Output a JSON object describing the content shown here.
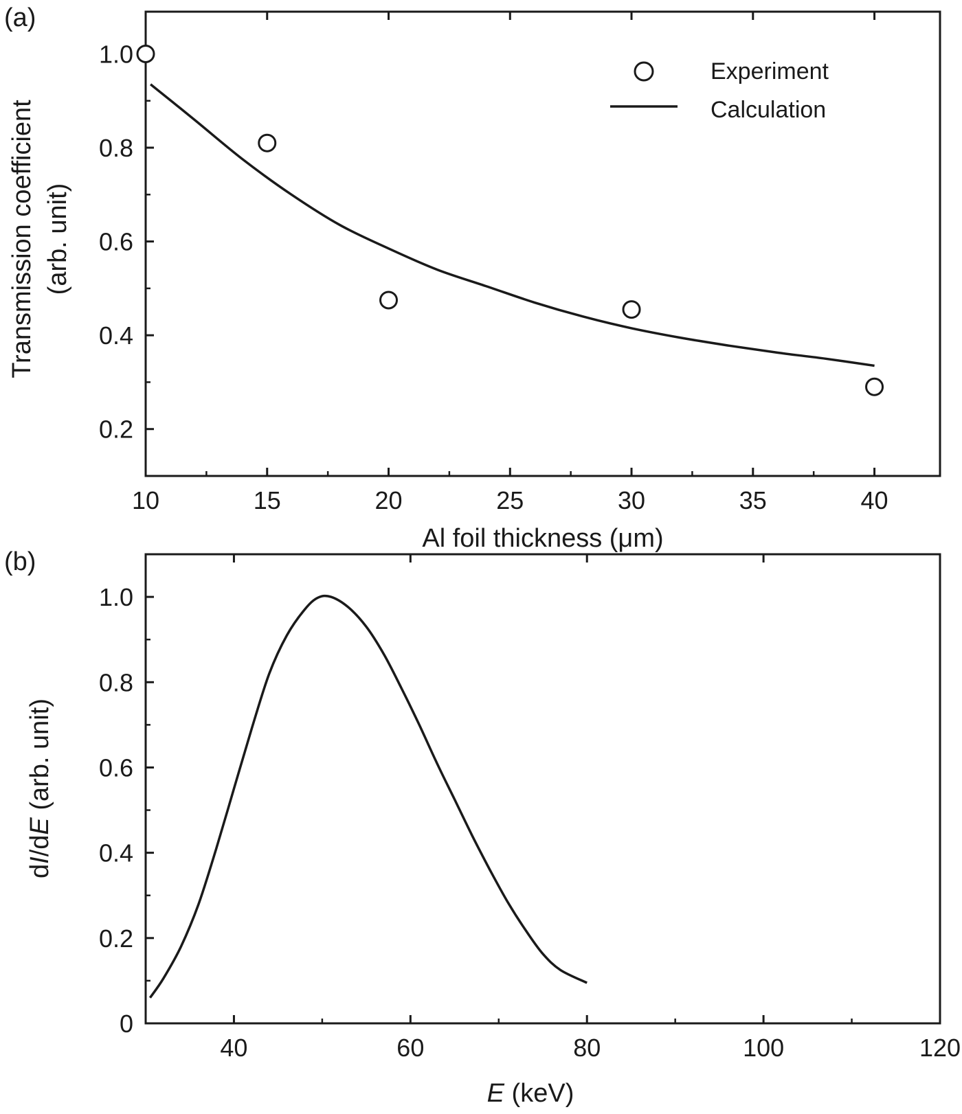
{
  "chart_data": [
    {
      "panel_label": "(a)",
      "type": "scatter",
      "xlabel": "Al foil thickness (μm)",
      "ylabel_line1": "Transmission coefficient",
      "ylabel_line2": "(arb. unit)",
      "xlim": [
        10,
        42.7
      ],
      "ylim": [
        0.1,
        1.09
      ],
      "xticks": [
        10,
        15,
        20,
        25,
        30,
        35,
        40
      ],
      "yticks": [
        0.2,
        0.4,
        0.6,
        0.8,
        1.0
      ],
      "xtick_labels": [
        "10",
        "15",
        "20",
        "25",
        "30",
        "35",
        "40"
      ],
      "ytick_labels": [
        "0.2",
        "0.4",
        "0.6",
        "0.8",
        "1.0"
      ],
      "legend_position": "top-right",
      "series": [
        {
          "name": "Experiment",
          "kind": "points",
          "x": [
            10,
            15,
            20,
            30,
            40
          ],
          "y": [
            1.0,
            0.81,
            0.475,
            0.455,
            0.29
          ]
        },
        {
          "name": "Calculation",
          "kind": "line",
          "x": [
            10.2,
            12,
            14,
            16,
            18,
            20,
            22,
            24,
            26,
            28,
            30,
            32,
            34,
            36,
            38,
            40
          ],
          "y": [
            0.935,
            0.86,
            0.775,
            0.7,
            0.635,
            0.585,
            0.54,
            0.505,
            0.47,
            0.44,
            0.415,
            0.395,
            0.378,
            0.363,
            0.35,
            0.335
          ]
        }
      ]
    },
    {
      "panel_label": "(b)",
      "type": "line",
      "xlabel_italic": "E",
      "xlabel_rest": " (keV)",
      "ylabel_part1": "d",
      "ylabel_part2": "I",
      "ylabel_part3": "/d",
      "ylabel_part4": "E",
      "ylabel_part5": " (arb. unit)",
      "xlim": [
        30,
        120
      ],
      "ylim": [
        0,
        1.1
      ],
      "xticks": [
        40,
        60,
        80,
        100,
        120
      ],
      "yticks": [
        0,
        0.2,
        0.4,
        0.6,
        0.8,
        1.0
      ],
      "xtick_labels": [
        "40",
        "60",
        "80",
        "100",
        "120"
      ],
      "ytick_labels": [
        "0",
        "0.2",
        "0.4",
        "0.6",
        "0.8",
        "1.0"
      ],
      "series": [
        {
          "kind": "line",
          "x": [
            30.5,
            32,
            34,
            36,
            38,
            40,
            42,
            44,
            46,
            48,
            49.5,
            51,
            53,
            55,
            57,
            59,
            61,
            63,
            65,
            67,
            69,
            71,
            73,
            75,
            77,
            80
          ],
          "y": [
            0.06,
            0.105,
            0.18,
            0.28,
            0.41,
            0.55,
            0.69,
            0.82,
            0.91,
            0.97,
            0.998,
            1.0,
            0.975,
            0.93,
            0.865,
            0.785,
            0.7,
            0.61,
            0.525,
            0.44,
            0.36,
            0.285,
            0.22,
            0.163,
            0.125,
            0.095
          ]
        }
      ]
    }
  ]
}
